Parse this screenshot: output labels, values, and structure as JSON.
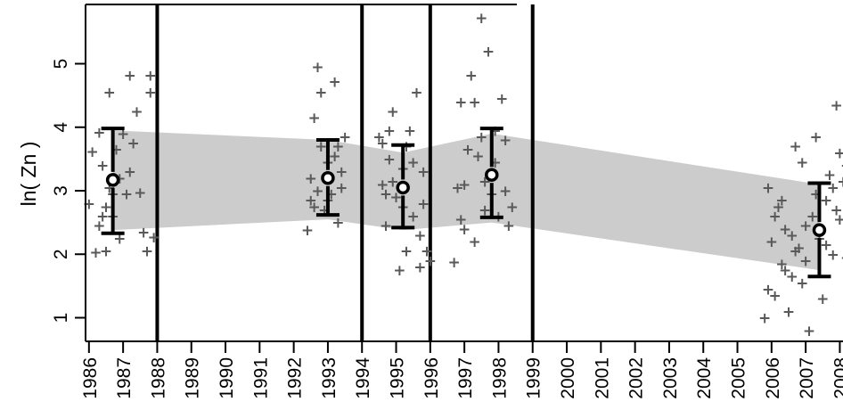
{
  "chart_data": {
    "type": "scatter",
    "title": "",
    "xlabel": "",
    "ylabel": "ln( Zn )",
    "ylim": [
      0.6,
      6.0
    ],
    "yticks": [
      1,
      2,
      3,
      4,
      5
    ],
    "x_categories": [
      "1986",
      "1987",
      "1988",
      "1989",
      "1990",
      "1991",
      "1992",
      "1993",
      "1994",
      "1995",
      "1996",
      "1997",
      "1998",
      "1999",
      "2000",
      "2001",
      "2002",
      "2003",
      "2004",
      "2005",
      "2006",
      "2007",
      "2008"
    ],
    "period_separators": [
      1988,
      1994,
      1996,
      1999
    ],
    "summary": [
      {
        "x": 1986.7,
        "mean": 3.17,
        "lower": 2.33,
        "upper": 3.98
      },
      {
        "x": 1993.0,
        "mean": 3.2,
        "lower": 2.62,
        "upper": 3.8
      },
      {
        "x": 1995.2,
        "mean": 3.05,
        "lower": 2.42,
        "upper": 3.72
      },
      {
        "x": 1997.8,
        "mean": 3.25,
        "lower": 2.58,
        "upper": 3.98
      },
      {
        "x": 2007.4,
        "mean": 2.38,
        "lower": 1.65,
        "upper": 3.12
      }
    ],
    "trend_band": {
      "x": [
        1986.7,
        1993.0,
        1995.2,
        1997.8,
        2007.4
      ],
      "lower": [
        2.38,
        2.55,
        2.38,
        2.5,
        1.75
      ],
      "upper": [
        3.95,
        3.8,
        3.6,
        3.9,
        3.1
      ]
    },
    "points": [
      [
        1986.0,
        2.8
      ],
      [
        1986.1,
        3.62
      ],
      [
        1986.2,
        2.03
      ],
      [
        1986.3,
        3.92
      ],
      [
        1986.3,
        2.45
      ],
      [
        1986.4,
        3.4
      ],
      [
        1986.5,
        2.05
      ],
      [
        1986.5,
        2.75
      ],
      [
        1986.6,
        4.55
      ],
      [
        1986.6,
        3.05
      ],
      [
        1986.7,
        2.6
      ],
      [
        1986.8,
        3.65
      ],
      [
        1986.9,
        2.25
      ],
      [
        1986.4,
        2.6
      ],
      [
        1986.7,
        2.95
      ],
      [
        1986.9,
        3.2
      ],
      [
        1987.0,
        3.9
      ],
      [
        1987.1,
        2.95
      ],
      [
        1987.2,
        4.82
      ],
      [
        1987.3,
        3.75
      ],
      [
        1987.4,
        4.25
      ],
      [
        1987.5,
        2.97
      ],
      [
        1987.6,
        2.35
      ],
      [
        1987.7,
        2.05
      ],
      [
        1987.8,
        4.55
      ],
      [
        1987.9,
        2.27
      ],
      [
        1987.8,
        4.82
      ],
      [
        1987.2,
        3.3
      ],
      [
        1992.4,
        2.38
      ],
      [
        1992.5,
        3.2
      ],
      [
        1992.6,
        4.15
      ],
      [
        1992.7,
        4.95
      ],
      [
        1992.8,
        4.55
      ],
      [
        1992.9,
        2.7
      ],
      [
        1993.0,
        3.45
      ],
      [
        1993.1,
        2.95
      ],
      [
        1993.2,
        3.55
      ],
      [
        1993.3,
        2.5
      ],
      [
        1993.4,
        3.05
      ],
      [
        1993.5,
        3.85
      ],
      [
        1992.6,
        2.75
      ],
      [
        1992.8,
        3.7
      ],
      [
        1993.2,
        4.72
      ],
      [
        1992.7,
        3.0
      ],
      [
        1993.0,
        2.85
      ],
      [
        1993.4,
        3.3
      ],
      [
        1992.5,
        2.85
      ],
      [
        1993.3,
        3.7
      ],
      [
        1994.5,
        3.85
      ],
      [
        1994.6,
        3.1
      ],
      [
        1994.7,
        2.45
      ],
      [
        1994.8,
        3.5
      ],
      [
        1994.9,
        4.25
      ],
      [
        1995.0,
        2.9
      ],
      [
        1995.1,
        1.75
      ],
      [
        1995.2,
        3.35
      ],
      [
        1995.3,
        2.05
      ],
      [
        1995.4,
        3.95
      ],
      [
        1995.5,
        2.6
      ],
      [
        1995.6,
        4.55
      ],
      [
        1995.7,
        1.8
      ],
      [
        1995.8,
        3.3
      ],
      [
        1995.9,
        2.05
      ],
      [
        1996.0,
        1.9
      ],
      [
        1994.6,
        3.75
      ],
      [
        1994.9,
        3.15
      ],
      [
        1995.2,
        2.75
      ],
      [
        1995.5,
        3.45
      ],
      [
        1995.8,
        2.8
      ],
      [
        1994.7,
        2.95
      ],
      [
        1995.3,
        3.7
      ],
      [
        1995.7,
        2.3
      ],
      [
        1994.8,
        3.95
      ],
      [
        1996.7,
        1.88
      ],
      [
        1996.8,
        3.05
      ],
      [
        1996.9,
        4.4
      ],
      [
        1997.0,
        2.4
      ],
      [
        1997.1,
        3.65
      ],
      [
        1997.2,
        4.82
      ],
      [
        1997.3,
        2.2
      ],
      [
        1997.4,
        3.55
      ],
      [
        1997.5,
        5.72
      ],
      [
        1997.6,
        3.15
      ],
      [
        1997.7,
        5.2
      ],
      [
        1997.8,
        2.95
      ],
      [
        1997.9,
        3.95
      ],
      [
        1998.0,
        2.6
      ],
      [
        1998.1,
        4.45
      ],
      [
        1998.2,
        3.8
      ],
      [
        1998.3,
        2.45
      ],
      [
        1998.4,
        2.75
      ],
      [
        1997.0,
        3.1
      ],
      [
        1997.3,
        4.4
      ],
      [
        1997.6,
        2.7
      ],
      [
        1997.9,
        3.45
      ],
      [
        1998.2,
        3.0
      ],
      [
        1996.9,
        2.55
      ],
      [
        1997.5,
        3.85
      ],
      [
        2005.8,
        1.0
      ],
      [
        2005.9,
        1.45
      ],
      [
        2006.0,
        2.2
      ],
      [
        2006.1,
        1.35
      ],
      [
        2006.2,
        2.75
      ],
      [
        2006.3,
        1.85
      ],
      [
        2006.4,
        2.4
      ],
      [
        2006.5,
        1.1
      ],
      [
        2006.6,
        1.65
      ],
      [
        2006.7,
        3.7
      ],
      [
        2006.8,
        2.1
      ],
      [
        2006.9,
        3.45
      ],
      [
        2007.0,
        1.9
      ],
      [
        2007.1,
        0.8
      ],
      [
        2007.2,
        2.6
      ],
      [
        2007.3,
        3.85
      ],
      [
        2007.4,
        2.25
      ],
      [
        2007.5,
        1.3
      ],
      [
        2007.6,
        2.85
      ],
      [
        2007.7,
        3.25
      ],
      [
        2007.8,
        2.0
      ],
      [
        2007.9,
        4.35
      ],
      [
        2008.0,
        2.55
      ],
      [
        2008.1,
        3.15
      ],
      [
        2008.2,
        1.95
      ],
      [
        2008.3,
        2.95
      ],
      [
        2008.4,
        3.75
      ],
      [
        2008.5,
        2.3
      ],
      [
        2008.6,
        1.5
      ],
      [
        2008.7,
        5.58
      ],
      [
        2008.8,
        3.55
      ],
      [
        2008.5,
        2.85
      ],
      [
        2008.2,
        3.4
      ],
      [
        2007.9,
        2.7
      ],
      [
        2007.6,
        2.15
      ],
      [
        2007.3,
        2.95
      ],
      [
        2007.0,
        2.45
      ],
      [
        2006.7,
        2.05
      ],
      [
        2006.4,
        1.75
      ],
      [
        2006.1,
        2.6
      ],
      [
        2005.9,
        3.05
      ],
      [
        2008.8,
        2.75
      ],
      [
        2008.6,
        3.25
      ],
      [
        2008.3,
        2.1
      ],
      [
        2008.0,
        3.6
      ],
      [
        2006.3,
        2.85
      ],
      [
        2006.6,
        2.3
      ],
      [
        2007.8,
        3.05
      ],
      [
        2008.4,
        2.55
      ],
      [
        2006.9,
        1.55
      ]
    ],
    "colors": {
      "points": "#595959",
      "band": "#cccccc",
      "summary": "#000000",
      "mean_marker": "#595959"
    }
  }
}
